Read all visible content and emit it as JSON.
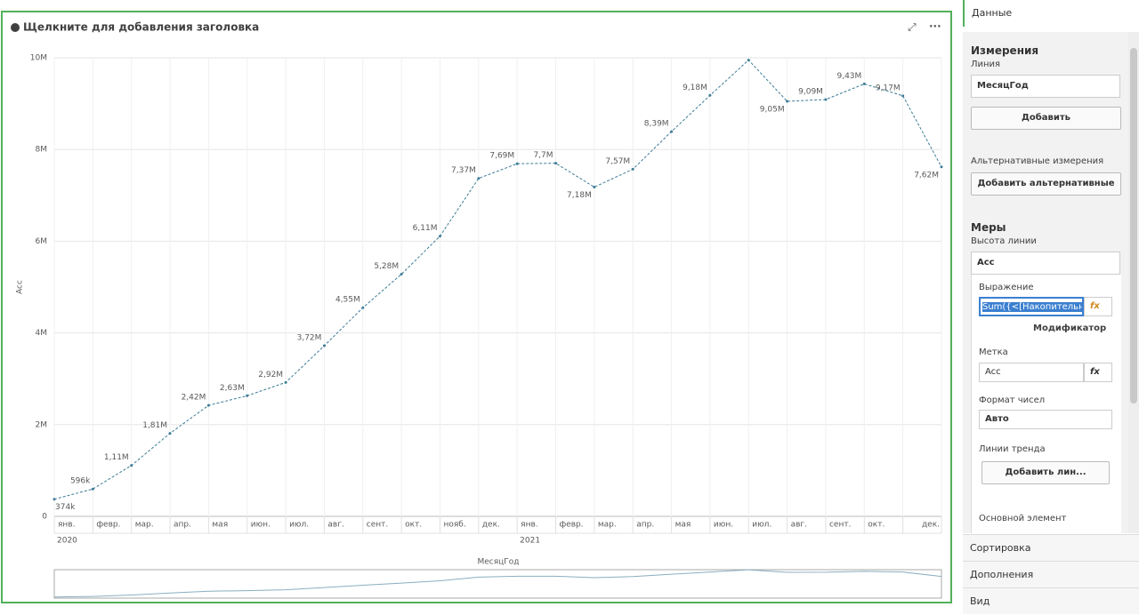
{
  "chart_data": {
    "type": "line",
    "title": "Щелкните для добавления заголовка",
    "y_label": "Acc",
    "x_label": "МесяцГод",
    "categories": [
      "янв.",
      "февр.",
      "мар.",
      "апр.",
      "мая",
      "июн.",
      "июл.",
      "авг.",
      "сент.",
      "окт.",
      "нояб.",
      "дек.",
      "янв.",
      "февр.",
      "мар.",
      "апр.",
      "мая",
      "июн.",
      "июл.",
      "авг.",
      "сент.",
      "окт.",
      null,
      "дек."
    ],
    "years": [
      "2020",
      "2021"
    ],
    "series": [
      {
        "name": "Acc",
        "color": "#3d7c97",
        "values": [
          374000,
          596000,
          1110000,
          1810000,
          2420000,
          2630000,
          2920000,
          3720000,
          4550000,
          5280000,
          6110000,
          7370000,
          7690000,
          7700000,
          7180000,
          7570000,
          8390000,
          9180000,
          9950000,
          9050000,
          9090000,
          9430000,
          9170000,
          7620000
        ],
        "value_labels": [
          "374k",
          "596k",
          "1,11M",
          "1,81M",
          "2,42M",
          "2,63M",
          "2,92M",
          "3,72M",
          "4,55M",
          "5,28M",
          "6,11M",
          "7,37M",
          "7,69M",
          "7,7M",
          "7,18M",
          "7,57M",
          "8,39M",
          "9,18M",
          null,
          "9,05M",
          "9,09M",
          "9,43M",
          "9,17M",
          "7,62M"
        ]
      }
    ],
    "ylim": [
      0,
      10000000
    ],
    "yticks": [
      0,
      {
        "value": 2000000,
        "label": "2M"
      },
      {
        "value": 4000000,
        "label": "4M"
      },
      {
        "value": 6000000,
        "label": "6M"
      },
      {
        "value": 8000000,
        "label": "8M"
      },
      {
        "value": 10000000,
        "label": "10M"
      }
    ],
    "grid": true
  },
  "panel": {
    "tabs": [
      "Данные",
      "Сортировка",
      "Дополнения",
      "Вид"
    ],
    "dimensions": {
      "title": "Измерения",
      "subtitle": "Линия",
      "field": "МесяцГод",
      "add": "Добавить",
      "alt_title": "Альтернативные измерения",
      "alt_add": "Добавить альтернативные"
    },
    "measures": {
      "title": "Меры",
      "subtitle": "Высота линии",
      "field": "Acc",
      "expression_label": "Выражение",
      "expression": "Sum({<[Накопительный",
      "modifier": "Модификатор",
      "label_label": "Метка",
      "label": "Acc",
      "format_label": "Формат чисел",
      "format": "Авто",
      "trend_label": "Линии тренда",
      "trend_add": "Добавить лин...",
      "main_label": "Основной элемент"
    }
  }
}
